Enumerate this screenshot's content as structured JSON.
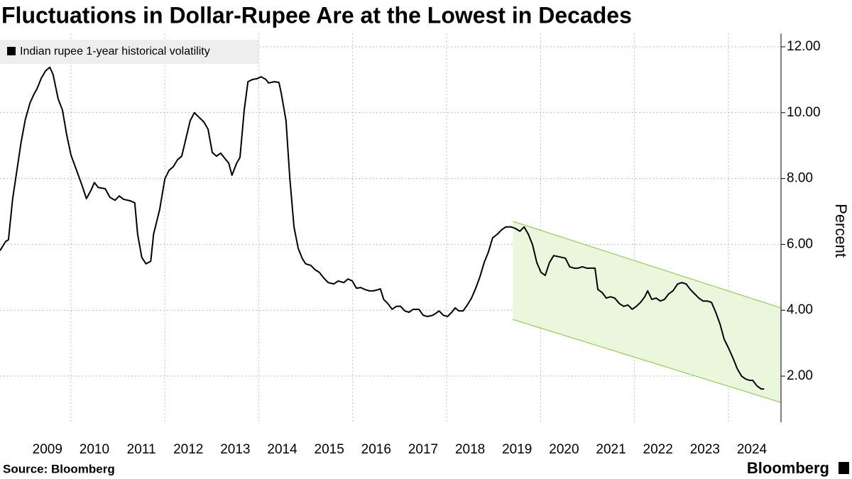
{
  "chart_data": {
    "type": "line",
    "title": "Fluctuations in Dollar-Rupee Are at the Lowest in Decades",
    "y_label": "Percent",
    "source": "Source: Bloomberg",
    "brand": "Bloomberg",
    "x": [
      2008.49,
      2008.61,
      2008.67,
      2008.76,
      2008.85,
      2008.94,
      2009.03,
      2009.13,
      2009.22,
      2009.28,
      2009.37,
      2009.46,
      2009.55,
      2009.62,
      2009.73,
      2009.82,
      2009.91,
      2010.0,
      2010.12,
      2010.24,
      2010.33,
      2010.43,
      2010.5,
      2010.58,
      2010.73,
      2010.83,
      2010.94,
      2011.03,
      2011.12,
      2011.27,
      2011.36,
      2011.42,
      2011.51,
      2011.6,
      2011.7,
      2011.76,
      2011.89,
      2012.0,
      2012.09,
      2012.18,
      2012.27,
      2012.36,
      2012.45,
      2012.54,
      2012.63,
      2012.72,
      2012.83,
      2012.92,
      2013.01,
      2013.1,
      2013.19,
      2013.3,
      2013.36,
      2013.43,
      2013.53,
      2013.6,
      2013.69,
      2013.77,
      2013.87,
      2013.96,
      2014.05,
      2014.15,
      2014.21,
      2014.33,
      2014.43,
      2014.48,
      2014.58,
      2014.66,
      2014.75,
      2014.84,
      2014.93,
      2015.0,
      2015.11,
      2015.2,
      2015.29,
      2015.39,
      2015.48,
      2015.6,
      2015.69,
      2015.81,
      2015.9,
      2015.99,
      2016.08,
      2016.17,
      2016.26,
      2016.35,
      2016.44,
      2016.5,
      2016.59,
      2016.66,
      2016.75,
      2016.84,
      2016.93,
      2017.02,
      2017.11,
      2017.2,
      2017.29,
      2017.41,
      2017.5,
      2017.59,
      2017.71,
      2017.84,
      2017.93,
      2018.02,
      2018.11,
      2018.18,
      2018.26,
      2018.35,
      2018.44,
      2018.53,
      2018.62,
      2018.71,
      2018.8,
      2018.89,
      2018.98,
      2019.08,
      2019.17,
      2019.26,
      2019.38,
      2019.47,
      2019.56,
      2019.65,
      2019.74,
      2019.83,
      2019.92,
      2020.01,
      2020.1,
      2020.19,
      2020.28,
      2020.41,
      2020.53,
      2020.62,
      2020.71,
      2020.8,
      2020.89,
      2020.98,
      2021.07,
      2021.16,
      2021.22,
      2021.31,
      2021.4,
      2021.49,
      2021.58,
      2021.68,
      2021.77,
      2021.86,
      2021.95,
      2022.04,
      2022.13,
      2022.22,
      2022.28,
      2022.37,
      2022.46,
      2022.55,
      2022.64,
      2022.73,
      2022.82,
      2022.92,
      2023.01,
      2023.1,
      2023.19,
      2023.28,
      2023.37,
      2023.46,
      2023.55,
      2023.64,
      2023.73,
      2023.82,
      2023.91,
      2024.0,
      2024.1,
      2024.19,
      2024.28,
      2024.37,
      2024.46,
      2024.52,
      2024.61,
      2024.7,
      2024.76
    ],
    "series": [
      {
        "name": "Indian rupee 1-year historical volatility",
        "color": "#000000",
        "values": [
          5.81,
          6.09,
          6.14,
          7.39,
          8.25,
          9.11,
          9.8,
          10.3,
          10.58,
          10.73,
          11.05,
          11.27,
          11.38,
          11.16,
          10.41,
          10.08,
          9.33,
          8.72,
          8.25,
          7.78,
          7.39,
          7.65,
          7.88,
          7.73,
          7.69,
          7.43,
          7.34,
          7.47,
          7.37,
          7.32,
          7.26,
          6.31,
          5.6,
          5.41,
          5.49,
          6.31,
          7.06,
          7.99,
          8.25,
          8.36,
          8.57,
          8.68,
          9.22,
          9.76,
          10.0,
          9.87,
          9.72,
          9.5,
          8.79,
          8.68,
          8.77,
          8.57,
          8.47,
          8.1,
          8.47,
          8.64,
          10.08,
          10.94,
          11.01,
          11.03,
          11.09,
          11.01,
          10.9,
          10.94,
          10.92,
          10.58,
          9.76,
          8.03,
          6.53,
          5.88,
          5.56,
          5.41,
          5.36,
          5.23,
          5.15,
          4.97,
          4.84,
          4.8,
          4.89,
          4.84,
          4.95,
          4.89,
          4.67,
          4.69,
          4.63,
          4.59,
          4.59,
          4.61,
          4.65,
          4.33,
          4.2,
          4.03,
          4.12,
          4.12,
          3.98,
          3.94,
          4.03,
          4.03,
          3.85,
          3.81,
          3.85,
          3.98,
          3.85,
          3.81,
          3.94,
          4.07,
          3.98,
          3.98,
          4.16,
          4.37,
          4.67,
          5.02,
          5.45,
          5.77,
          6.2,
          6.31,
          6.44,
          6.53,
          6.53,
          6.48,
          6.4,
          6.53,
          6.31,
          5.99,
          5.45,
          5.15,
          5.06,
          5.45,
          5.66,
          5.62,
          5.58,
          5.32,
          5.28,
          5.28,
          5.32,
          5.28,
          5.28,
          5.28,
          4.63,
          4.54,
          4.37,
          4.41,
          4.37,
          4.2,
          4.12,
          4.16,
          4.03,
          4.12,
          4.24,
          4.41,
          4.59,
          4.33,
          4.37,
          4.28,
          4.33,
          4.5,
          4.59,
          4.8,
          4.84,
          4.8,
          4.63,
          4.5,
          4.37,
          4.28,
          4.28,
          4.24,
          3.94,
          3.59,
          3.12,
          2.86,
          2.54,
          2.22,
          2.0,
          1.91,
          1.87,
          1.87,
          1.7,
          1.61,
          1.61
        ]
      }
    ],
    "channel": {
      "x": [
        2019.41,
        2025.12
      ],
      "upper": [
        6.7,
        4.07
      ],
      "lower": [
        3.72,
        1.2
      ],
      "fill": "#eaf7dc",
      "stroke": "#8fd14f"
    },
    "xlim": [
      2008.49,
      2025.12
    ],
    "xticks": [
      {
        "value": 2009.5,
        "label": "2009"
      },
      {
        "value": 2010.5,
        "label": "2010"
      },
      {
        "value": 2011.5,
        "label": "2011"
      },
      {
        "value": 2012.5,
        "label": "2012"
      },
      {
        "value": 2013.5,
        "label": "2013"
      },
      {
        "value": 2014.5,
        "label": "2014"
      },
      {
        "value": 2015.5,
        "label": "2015"
      },
      {
        "value": 2016.5,
        "label": "2016"
      },
      {
        "value": 2017.5,
        "label": "2017"
      },
      {
        "value": 2018.5,
        "label": "2018"
      },
      {
        "value": 2019.5,
        "label": "2019"
      },
      {
        "value": 2020.5,
        "label": "2020"
      },
      {
        "value": 2021.5,
        "label": "2021"
      },
      {
        "value": 2022.5,
        "label": "2022"
      },
      {
        "value": 2023.5,
        "label": "2023"
      },
      {
        "value": 2024.5,
        "label": "2024"
      }
    ],
    "xgrid": [
      2010,
      2012,
      2014,
      2016,
      2018,
      2020,
      2022,
      2024
    ],
    "ylim": [
      0.6,
      12.4
    ],
    "yticks": [
      {
        "value": 2,
        "label": "2.00"
      },
      {
        "value": 4,
        "label": "4.00"
      },
      {
        "value": 6,
        "label": "6.00"
      },
      {
        "value": 8,
        "label": "8.00"
      },
      {
        "value": 10,
        "label": "10.00"
      },
      {
        "value": 12,
        "label": "12.00"
      }
    ],
    "grid": true,
    "legend": "top-left"
  }
}
